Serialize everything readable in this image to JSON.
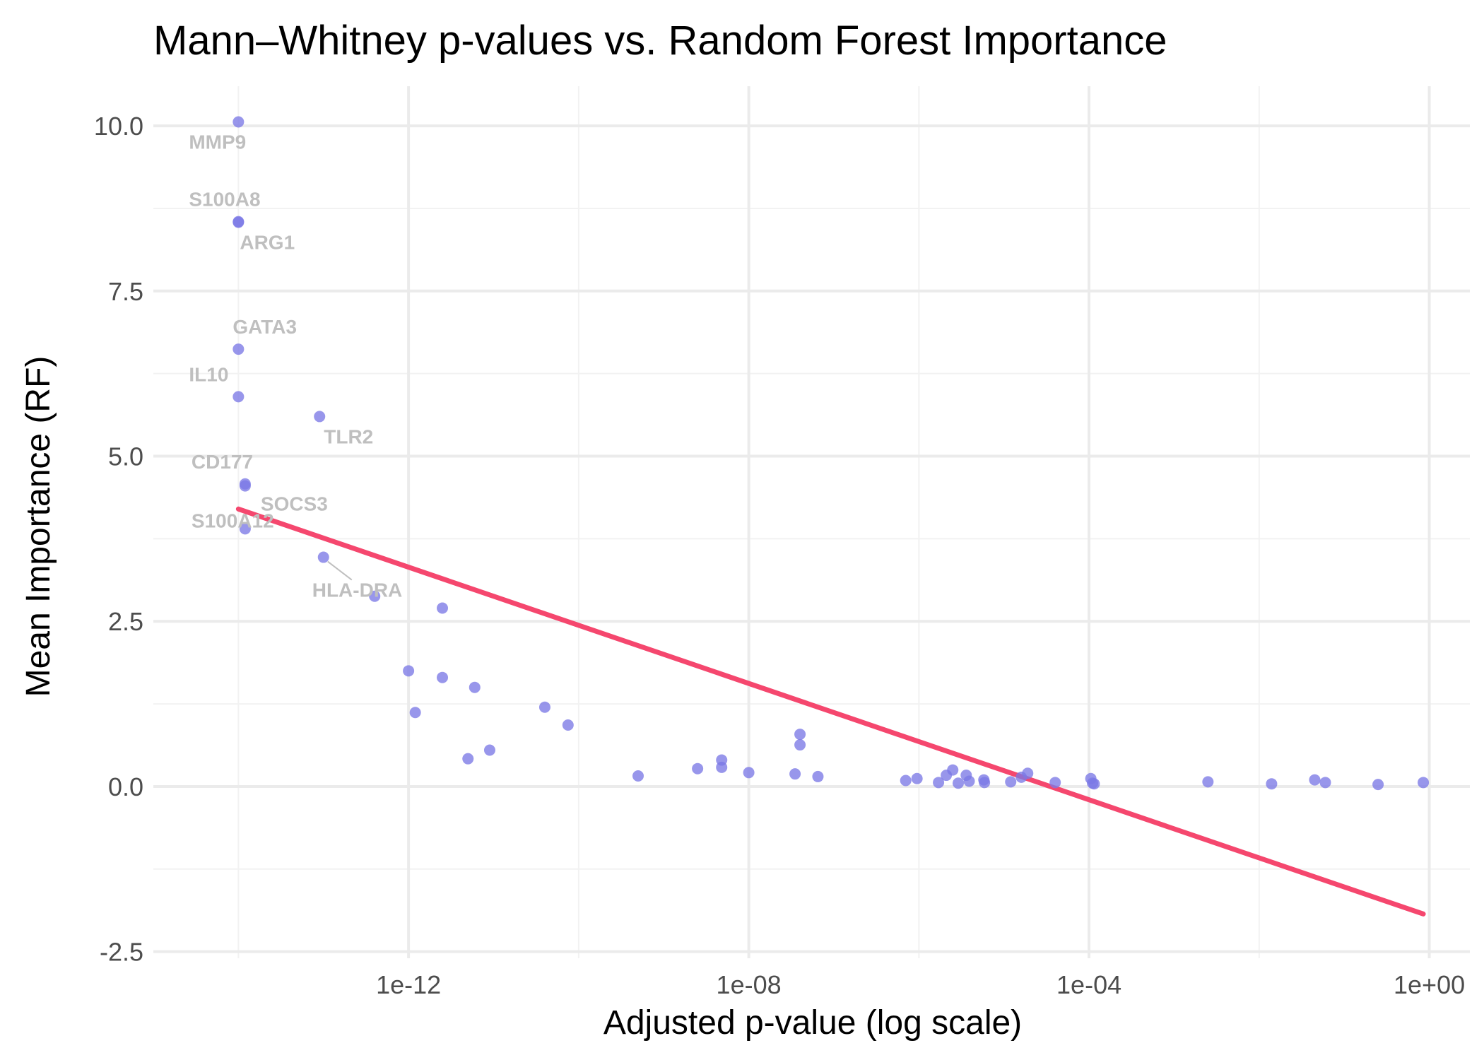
{
  "chart_data": {
    "type": "scatter",
    "title": "Mann–Whitney p-values vs. Random Forest Importance",
    "xlabel": "Adjusted p-value (log scale)",
    "ylabel": "Mean Importance (RF)",
    "x_scale": "log10",
    "xlim": [
      1e-15,
      3.0
    ],
    "ylim": [
      -2.6,
      10.6
    ],
    "x_ticks": [
      {
        "value": 1e-12,
        "label": "1e-12"
      },
      {
        "value": 1e-08,
        "label": "1e-08"
      },
      {
        "value": 0.0001,
        "label": "1e-04"
      },
      {
        "value": 1,
        "label": "1e+00"
      }
    ],
    "y_ticks": [
      {
        "value": -2.5,
        "label": "-2.5"
      },
      {
        "value": 0,
        "label": "0.0"
      },
      {
        "value": 2.5,
        "label": "2.5"
      },
      {
        "value": 5,
        "label": "5.0"
      },
      {
        "value": 7.5,
        "label": "7.5"
      },
      {
        "value": 10,
        "label": "10.0"
      }
    ],
    "grid": true,
    "point_color": "#7b78e6",
    "trend_color": "#f5476e",
    "label_color": "#bfbfbf",
    "points": [
      {
        "x": 1e-14,
        "y": 10.06,
        "label": "MMP9"
      },
      {
        "x": 1e-14,
        "y": 8.55,
        "label": "S100A8"
      },
      {
        "x": 1e-14,
        "y": 8.54,
        "label": "ARG1"
      },
      {
        "x": 1e-14,
        "y": 6.62,
        "label": "GATA3"
      },
      {
        "x": 1e-14,
        "y": 5.9,
        "label": "IL10"
      },
      {
        "x": 9e-14,
        "y": 5.6,
        "label": "TLR2"
      },
      {
        "x": 1.2e-14,
        "y": 4.58,
        "label": "CD177"
      },
      {
        "x": 1.2e-14,
        "y": 4.55,
        "label": "SOCS3"
      },
      {
        "x": 1.2e-14,
        "y": 3.9,
        "label": "S100A12"
      },
      {
        "x": 1e-13,
        "y": 3.47,
        "label": "HLA-DRA"
      },
      {
        "x": 4e-13,
        "y": 2.88
      },
      {
        "x": 2.5e-12,
        "y": 2.7
      },
      {
        "x": 1e-12,
        "y": 1.75
      },
      {
        "x": 1.2e-12,
        "y": 1.12
      },
      {
        "x": 2.5e-12,
        "y": 1.65
      },
      {
        "x": 6e-12,
        "y": 1.5
      },
      {
        "x": 5e-12,
        "y": 0.42
      },
      {
        "x": 9e-12,
        "y": 0.55
      },
      {
        "x": 4e-11,
        "y": 1.2
      },
      {
        "x": 7.5e-11,
        "y": 0.93
      },
      {
        "x": 5e-10,
        "y": 0.16
      },
      {
        "x": 2.5e-09,
        "y": 0.27
      },
      {
        "x": 4.8e-09,
        "y": 0.4
      },
      {
        "x": 4.8e-09,
        "y": 0.29
      },
      {
        "x": 1e-08,
        "y": 0.21
      },
      {
        "x": 3.5e-08,
        "y": 0.19
      },
      {
        "x": 4e-08,
        "y": 0.79
      },
      {
        "x": 4e-08,
        "y": 0.63
      },
      {
        "x": 6.5e-08,
        "y": 0.15
      },
      {
        "x": 7e-07,
        "y": 0.09
      },
      {
        "x": 9.5e-07,
        "y": 0.12
      },
      {
        "x": 1.7e-06,
        "y": 0.06
      },
      {
        "x": 2.1e-06,
        "y": 0.17
      },
      {
        "x": 2.5e-06,
        "y": 0.25
      },
      {
        "x": 2.9e-06,
        "y": 0.05
      },
      {
        "x": 3.6e-06,
        "y": 0.17
      },
      {
        "x": 3.9e-06,
        "y": 0.08
      },
      {
        "x": 5.8e-06,
        "y": 0.1
      },
      {
        "x": 5.9e-06,
        "y": 0.06
      },
      {
        "x": 1.2e-05,
        "y": 0.07
      },
      {
        "x": 1.6e-05,
        "y": 0.14
      },
      {
        "x": 1.9e-05,
        "y": 0.2
      },
      {
        "x": 4e-05,
        "y": 0.06
      },
      {
        "x": 0.000105,
        "y": 0.12
      },
      {
        "x": 0.00011,
        "y": 0.05
      },
      {
        "x": 0.000115,
        "y": 0.04
      },
      {
        "x": 0.0025,
        "y": 0.07
      },
      {
        "x": 0.014,
        "y": 0.04
      },
      {
        "x": 0.045,
        "y": 0.1
      },
      {
        "x": 0.06,
        "y": 0.06
      },
      {
        "x": 0.25,
        "y": 0.03
      },
      {
        "x": 0.85,
        "y": 0.06
      }
    ],
    "trend_line": {
      "x": [
        1e-14,
        0.85
      ],
      "y": [
        4.2,
        -1.93
      ]
    }
  }
}
